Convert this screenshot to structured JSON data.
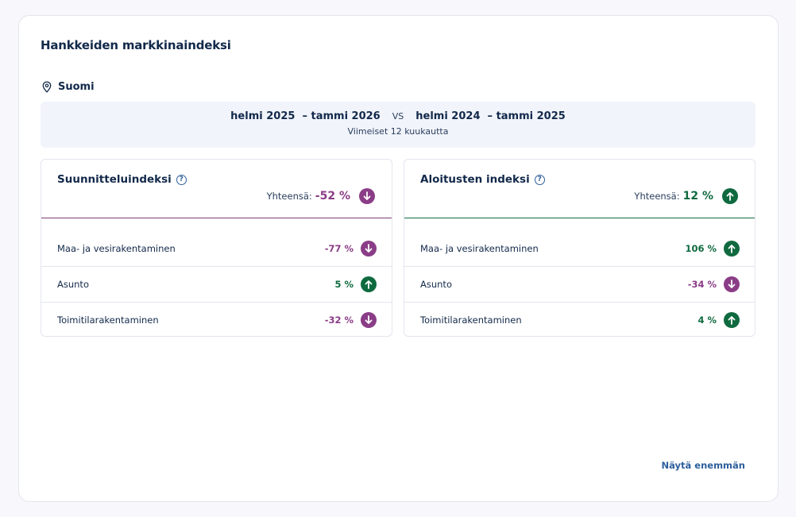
{
  "title": "Hankkeiden markkinaindeksi",
  "location": {
    "label": "Suomi",
    "icon": "map-pin-icon"
  },
  "period": {
    "current": "helmi 2025  – tammi 2026",
    "vs": "VS",
    "previous": "helmi 2024  – tammi 2025",
    "subtitle": "Viimeiset 12 kuukautta"
  },
  "panels": [
    {
      "title": "Suunnitteluindeksi",
      "total_label": "Yhteensä:",
      "total_value": "-52 %",
      "total_trend": "down",
      "rows": [
        {
          "label": "Maa- ja vesirakentaminen",
          "value": "-77 %",
          "trend": "down"
        },
        {
          "label": "Asunto",
          "value": "5 %",
          "trend": "up"
        },
        {
          "label": "Toimitilarakentaminen",
          "value": "-32 %",
          "trend": "down"
        }
      ]
    },
    {
      "title": "Aloitusten indeksi",
      "total_label": "Yhteensä:",
      "total_value": "12 %",
      "total_trend": "up",
      "rows": [
        {
          "label": "Maa- ja vesirakentaminen",
          "value": "106 %",
          "trend": "up"
        },
        {
          "label": "Asunto",
          "value": "-34 %",
          "trend": "down"
        },
        {
          "label": "Toimitilarakentaminen",
          "value": "4 %",
          "trend": "up"
        }
      ]
    }
  ],
  "help_icon_glyph": "?",
  "colors": {
    "negative": "#8a3d86",
    "positive": "#0f6a3f",
    "link": "#2d5f9c"
  },
  "more_link": "Näytä enemmän"
}
